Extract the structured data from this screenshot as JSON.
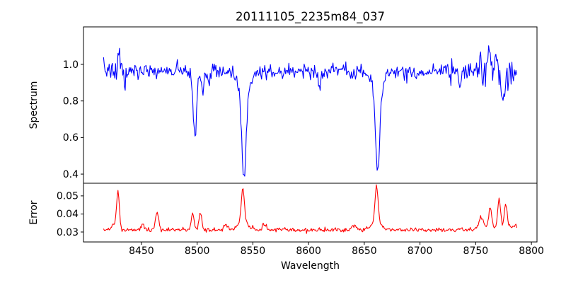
{
  "window": {
    "background": "#ffffff",
    "axes_color": "#000000"
  },
  "chart_data": {
    "type": "line",
    "title": "20111105_2235m84_037",
    "xlabel": "Wavelength",
    "xlim": [
      8398,
      8805
    ],
    "x_ticks": [
      8450,
      8500,
      8550,
      8600,
      8650,
      8700,
      8750,
      8800
    ],
    "data_x_range": [
      8416,
      8787
    ],
    "sample_step": 0.72,
    "noise_seed": 7,
    "grid": false,
    "legend": false,
    "panels": [
      {
        "name": "spectrum",
        "ylabel": "Spectrum",
        "color": "#0000ff",
        "ylim": [
          0.35,
          1.205
        ],
        "y_ticks": [
          0.4,
          0.6,
          0.8,
          1.0
        ],
        "y_tick_labels": [
          "0.4",
          "0.6",
          "0.8",
          "1.0"
        ],
        "continuum": 0.963,
        "noise_sigma": 0.021,
        "edge_noise": [
          {
            "center": 8770,
            "boost": 1.4,
            "width": 10
          },
          {
            "center": 8424,
            "boost": 0.5,
            "width": 8
          }
        ],
        "absorption_lines": [
          {
            "center": 8498.0,
            "depth": 0.32,
            "width": 1.3,
            "wing_depth": 0.05,
            "wing_width": 3.5
          },
          {
            "center": 8542.0,
            "depth": 0.475,
            "width": 2.0,
            "wing_depth": 0.1,
            "wing_width": 5.5
          },
          {
            "center": 8662.0,
            "depth": 0.45,
            "width": 1.9,
            "wing_depth": 0.08,
            "wing_width": 5.0
          }
        ],
        "spikes": [
          {
            "center": 8430,
            "amp": 0.1,
            "width": 0.9
          },
          {
            "center": 8435,
            "amp": -0.09,
            "width": 0.8
          },
          {
            "center": 8505,
            "amp": -0.1,
            "width": 0.9
          },
          {
            "center": 8511,
            "amp": -0.08,
            "width": 0.8
          },
          {
            "center": 8610,
            "amp": -0.09,
            "width": 0.8
          },
          {
            "center": 8736,
            "amp": -0.08,
            "width": 0.9
          },
          {
            "center": 8754,
            "amp": 0.07,
            "width": 0.9
          },
          {
            "center": 8762,
            "amp": 0.16,
            "width": 1.0
          },
          {
            "center": 8768,
            "amp": 0.11,
            "width": 0.9
          },
          {
            "center": 8775,
            "amp": -0.18,
            "width": 1.0
          }
        ]
      },
      {
        "name": "error",
        "ylabel": "Error",
        "color": "#ff0000",
        "ylim": [
          0.0245,
          0.057
        ],
        "y_ticks": [
          0.03,
          0.04,
          0.05
        ],
        "y_tick_labels": [
          "0.03",
          "0.04",
          "0.05"
        ],
        "baseline": 0.0312,
        "noise_sigma": 0.0006,
        "peaks": [
          {
            "center": 8426,
            "amp": 0.003,
            "width": 2.5
          },
          {
            "center": 8429,
            "amp": 0.0205,
            "width": 1.2
          },
          {
            "center": 8451,
            "amp": 0.004,
            "width": 1.2
          },
          {
            "center": 8464,
            "amp": 0.0105,
            "width": 1.3
          },
          {
            "center": 8496,
            "amp": 0.0085,
            "width": 1.4
          },
          {
            "center": 8503,
            "amp": 0.0095,
            "width": 1.2
          },
          {
            "center": 8526,
            "amp": 0.0028,
            "width": 1.5
          },
          {
            "center": 8541,
            "amp": 0.0185,
            "width": 1.4
          },
          {
            "center": 8541,
            "amp": 0.004,
            "width": 4.5
          },
          {
            "center": 8560,
            "amp": 0.0032,
            "width": 1.5
          },
          {
            "center": 8640,
            "amp": 0.0022,
            "width": 2.0
          },
          {
            "center": 8661,
            "amp": 0.0195,
            "width": 1.4
          },
          {
            "center": 8661,
            "amp": 0.0045,
            "width": 4.5
          },
          {
            "center": 8755,
            "amp": 0.006,
            "width": 2.0
          },
          {
            "center": 8763,
            "amp": 0.0115,
            "width": 1.4
          },
          {
            "center": 8771,
            "amp": 0.0155,
            "width": 1.3
          },
          {
            "center": 8777,
            "amp": 0.0125,
            "width": 1.3
          },
          {
            "center": 8800,
            "amp": 0.0022,
            "width": 30
          }
        ]
      }
    ]
  }
}
